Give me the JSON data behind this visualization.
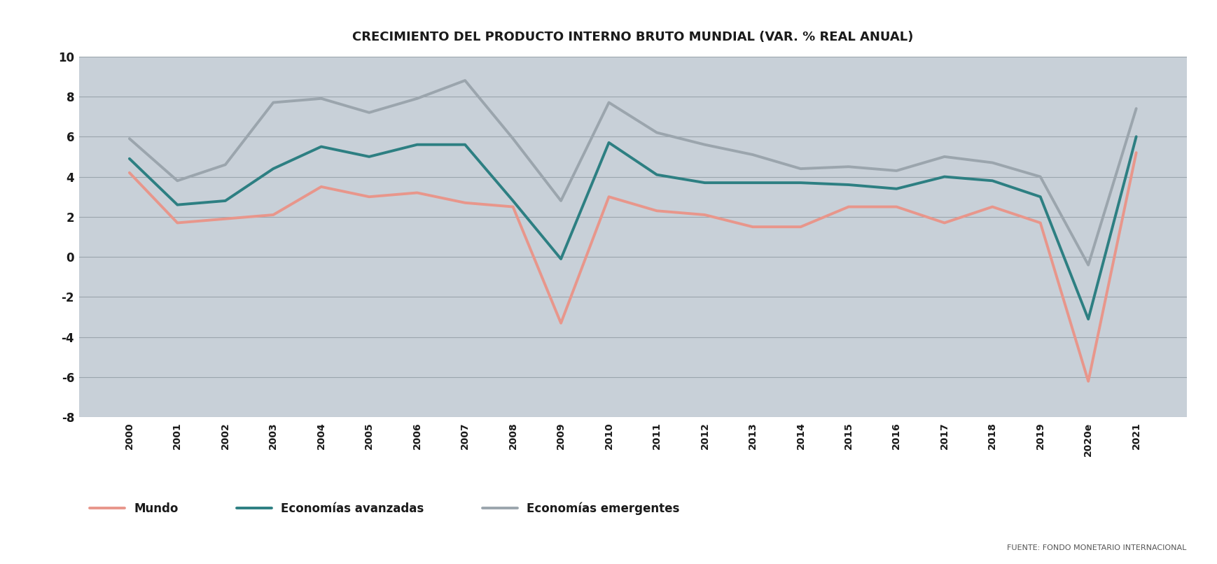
{
  "title": "CRECIMIENTO DEL PRODUCTO INTERNO BRUTO MUNDIAL (VAR. % REAL ANUAL)",
  "years": [
    "2000",
    "2001",
    "2002",
    "2003",
    "2004",
    "2005",
    "2006",
    "2007",
    "2008",
    "2009",
    "2010",
    "2011",
    "2012",
    "2013",
    "2014",
    "2015",
    "2016",
    "2017",
    "2018",
    "2019",
    "2020e",
    "2021"
  ],
  "mundo": [
    4.2,
    1.7,
    1.9,
    2.1,
    3.5,
    3.0,
    3.2,
    2.7,
    2.5,
    -3.3,
    3.0,
    2.3,
    2.1,
    1.5,
    1.5,
    2.5,
    2.5,
    1.7,
    2.5,
    1.7,
    -6.2,
    5.2
  ],
  "avanzadas": [
    4.9,
    2.6,
    2.8,
    4.4,
    5.5,
    5.0,
    5.6,
    5.6,
    2.8,
    -0.1,
    5.7,
    4.1,
    3.7,
    3.7,
    3.7,
    3.6,
    3.4,
    4.0,
    3.8,
    3.0,
    -3.1,
    6.0
  ],
  "emergentes": [
    5.9,
    3.8,
    4.6,
    7.7,
    7.9,
    7.2,
    7.9,
    8.8,
    5.9,
    2.8,
    7.7,
    6.2,
    5.6,
    5.1,
    4.4,
    4.5,
    4.3,
    5.0,
    4.7,
    4.0,
    -0.4,
    7.4
  ],
  "mundo_color": "#E8968B",
  "avanzadas_color": "#2D7F82",
  "emergentes_color": "#9BA5AD",
  "bg_color": "#C8D0D8",
  "outer_bg": "#FFFFFF",
  "grid_color": "#9BA5AD",
  "title_fontsize": 13,
  "ylim_min": -8,
  "ylim_max": 10,
  "yticks": [
    -8,
    -6,
    -4,
    -2,
    0,
    2,
    4,
    6,
    8,
    10
  ],
  "source_text": "FUENTE: FONDO MONETARIO INTERNACIONAL",
  "legend_mundo": "Mundo",
  "legend_avanzadas": "Economías avanzadas",
  "legend_emergentes": "Economías emergentes",
  "line_width": 2.8
}
